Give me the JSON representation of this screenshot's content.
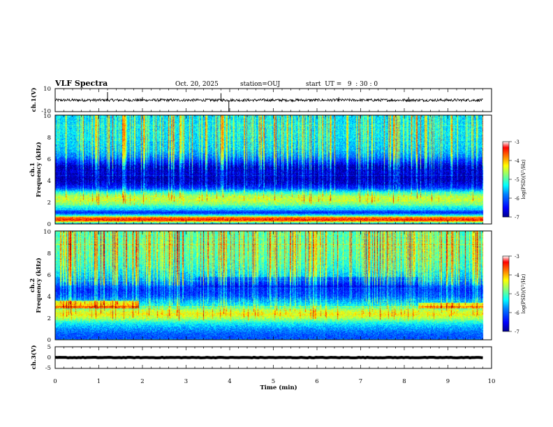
{
  "header": {
    "title": "VLF Spectra",
    "date": "Oct. 20, 2025",
    "station": "station=OUJ",
    "start": "start  UT =   9  : 30 : 0"
  },
  "chart_data": [
    {
      "type": "line",
      "name": "ch1-waveform",
      "ylabel": "ch.1(V)",
      "ylim": [
        -10,
        10
      ],
      "yticks": [
        "10",
        "-10"
      ],
      "xlim": [
        0,
        10
      ],
      "baseline": 0,
      "noise_amplitude": 1.2,
      "spikes": [
        {
          "t": 1.2,
          "v": 7
        },
        {
          "t": 3.8,
          "v": 6
        },
        {
          "t": 3.98,
          "v": -10
        },
        {
          "t": 2.0,
          "v": 2.5
        },
        {
          "t": 6.5,
          "v": 2.5
        },
        {
          "t": 8.1,
          "v": 2.5
        }
      ],
      "data_end_min": 9.8
    },
    {
      "type": "heatmap",
      "name": "ch1-spectrogram",
      "ylabel_top": "ch.1",
      "ylabel": "Frequency (kHz)",
      "ylim": [
        0,
        10
      ],
      "yticks": [
        "0",
        "2",
        "4",
        "6",
        "8",
        "10"
      ],
      "xlim": [
        0,
        10
      ],
      "data_end_min": 9.8,
      "profile_freq_khz": [
        0,
        0.3,
        0.5,
        0.8,
        1.0,
        1.3,
        1.7,
        2.1,
        2.5,
        2.9,
        3.3,
        3.7,
        4.2,
        4.8,
        5.2,
        5.6,
        6.2,
        6.8,
        7.5,
        8.5,
        10
      ],
      "profile_log_psd": [
        -5.6,
        -3.4,
        -3.6,
        -5.4,
        -6.4,
        -5.6,
        -4.9,
        -4.5,
        -4.6,
        -5.2,
        -6.3,
        -6.7,
        -6.9,
        -6.7,
        -6.9,
        -6.5,
        -5.9,
        -5.6,
        -5.5,
        -5.4,
        -5.5
      ],
      "sferic_density": 0.55,
      "colorbar": {
        "label": "log(PSD)(V²/Hz)",
        "min": -7,
        "max": -3,
        "ticks": [
          "-3",
          "-4",
          "-5",
          "-6",
          "-7"
        ]
      }
    },
    {
      "type": "heatmap",
      "name": "ch2-spectrogram",
      "ylabel_top": "ch.2",
      "ylabel": "Frequency (kHz)",
      "ylim": [
        0,
        10
      ],
      "yticks": [
        "0",
        "2",
        "4",
        "6",
        "8",
        "10"
      ],
      "xlim": [
        0,
        10
      ],
      "data_end_min": 9.8,
      "profile_freq_khz": [
        0,
        0.5,
        1.0,
        1.5,
        1.9,
        2.3,
        2.7,
        3.1,
        3.5,
        4.0,
        4.6,
        5.2,
        5.8,
        6.5,
        7.5,
        8.5,
        10
      ],
      "profile_log_psd": [
        -6.1,
        -6.0,
        -5.7,
        -5.3,
        -4.7,
        -4.3,
        -4.6,
        -5.3,
        -5.6,
        -6.2,
        -6.4,
        -6.0,
        -5.6,
        -5.3,
        -5.1,
        -5.0,
        -5.1
      ],
      "sferic_density": 0.6,
      "colorbar": {
        "label": "log(PSD)(V²/Hz)",
        "min": -7,
        "max": -3,
        "ticks": [
          "-3",
          "-4",
          "-5",
          "-6",
          "-7"
        ]
      }
    },
    {
      "type": "line",
      "name": "ch3-waveform",
      "ylabel": "ch.3(V)",
      "ylim": [
        -5,
        5
      ],
      "yticks": [
        "5",
        "0",
        "-5"
      ],
      "xlim": [
        0,
        10
      ],
      "baseline": 0,
      "noise_amplitude": 0.15,
      "spikes": [],
      "data_end_min": 9.8
    }
  ],
  "xaxis": {
    "label": "Time (min)",
    "ticks": [
      "0",
      "1",
      "2",
      "3",
      "4",
      "5",
      "6",
      "7",
      "8",
      "9",
      "10"
    ]
  },
  "colors": {
    "jet": [
      "#00008f",
      "#0000ff",
      "#0080ff",
      "#00ffff",
      "#80ff80",
      "#ffff00",
      "#ff8000",
      "#ff0000",
      "#800000"
    ]
  }
}
